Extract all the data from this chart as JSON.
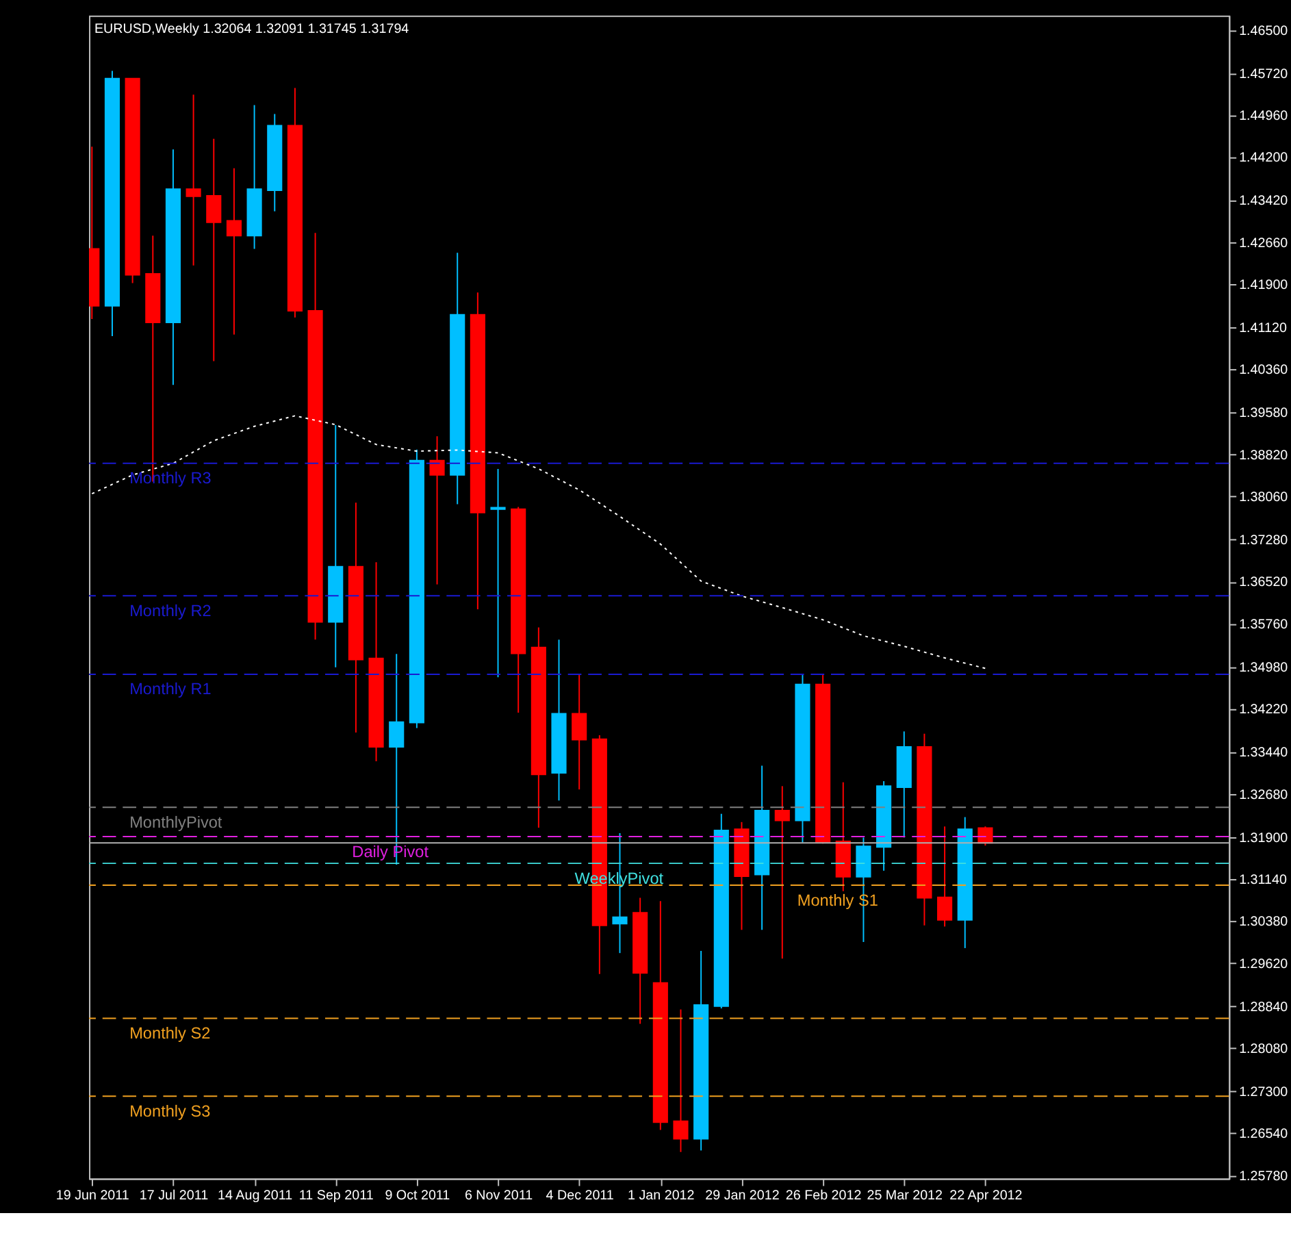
{
  "chart_data": {
    "type": "candlestick",
    "title": "EURUSD,Weekly  1.32064 1.32091 1.31745 1.31794",
    "x": [
      "2011-06-19",
      "2011-06-26",
      "2011-07-03",
      "2011-07-10",
      "2011-07-17",
      "2011-07-24",
      "2011-07-31",
      "2011-08-07",
      "2011-08-14",
      "2011-08-21",
      "2011-08-28",
      "2011-09-04",
      "2011-09-11",
      "2011-09-18",
      "2011-09-25",
      "2011-10-02",
      "2011-10-09",
      "2011-10-16",
      "2011-10-23",
      "2011-10-30",
      "2011-11-06",
      "2011-11-13",
      "2011-11-20",
      "2011-11-27",
      "2011-12-04",
      "2011-12-11",
      "2011-12-18",
      "2011-12-25",
      "2012-01-01",
      "2012-01-08",
      "2012-01-15",
      "2012-01-22",
      "2012-01-29",
      "2012-02-05",
      "2012-02-12",
      "2012-02-19",
      "2012-02-26",
      "2012-03-04",
      "2012-03-11",
      "2012-03-18",
      "2012-03-25",
      "2012-04-01",
      "2012-04-08",
      "2012-04-15",
      "2012-04-22"
    ],
    "ohlc": [
      [
        1.4254,
        1.4439,
        1.4127,
        1.4151
      ],
      [
        1.4151,
        1.4576,
        1.4096,
        1.4562
      ],
      [
        1.4562,
        1.4562,
        1.4192,
        1.4207
      ],
      [
        1.4209,
        1.4278,
        1.3833,
        1.4121
      ],
      [
        1.4121,
        1.4434,
        1.4008,
        1.4362
      ],
      [
        1.4362,
        1.4533,
        1.4224,
        1.4349
      ],
      [
        1.435,
        1.4453,
        1.4051,
        1.4302
      ],
      [
        1.4305,
        1.44,
        1.4099,
        1.4278
      ],
      [
        1.4278,
        1.4514,
        1.4254,
        1.4362
      ],
      [
        1.436,
        1.4498,
        1.4322,
        1.4477
      ],
      [
        1.4477,
        1.4545,
        1.413,
        1.4142
      ],
      [
        1.4142,
        1.4283,
        1.3547,
        1.3579
      ],
      [
        1.3579,
        1.3935,
        1.3497,
        1.3679
      ],
      [
        1.3679,
        1.3795,
        1.3379,
        1.3511
      ],
      [
        1.3513,
        1.3687,
        1.3327,
        1.3353
      ],
      [
        1.3353,
        1.3521,
        1.314,
        1.3398
      ],
      [
        1.3397,
        1.3891,
        1.3387,
        1.3871
      ],
      [
        1.3871,
        1.3915,
        1.3647,
        1.3845
      ],
      [
        1.3845,
        1.4247,
        1.3792,
        1.4135
      ],
      [
        1.4135,
        1.4175,
        1.3602,
        1.3777
      ],
      [
        1.3783,
        1.3856,
        1.3479,
        1.3786
      ],
      [
        1.3783,
        1.3787,
        1.3415,
        1.3522
      ],
      [
        1.3533,
        1.3569,
        1.3207,
        1.3303
      ],
      [
        1.3306,
        1.3547,
        1.3256,
        1.3413
      ],
      [
        1.3413,
        1.3483,
        1.3276,
        1.3366
      ],
      [
        1.3367,
        1.3374,
        1.2942,
        1.303
      ],
      [
        1.3033,
        1.3197,
        1.298,
        1.3045
      ],
      [
        1.3053,
        1.308,
        1.2852,
        1.2944
      ],
      [
        1.2926,
        1.3074,
        1.266,
        1.2674
      ],
      [
        1.2676,
        1.2878,
        1.262,
        1.2644
      ],
      [
        1.2644,
        1.2984,
        1.2623,
        1.2886
      ],
      [
        1.2884,
        1.3232,
        1.288,
        1.3202
      ],
      [
        1.3204,
        1.3217,
        1.3022,
        1.3119
      ],
      [
        1.3122,
        1.3319,
        1.3022,
        1.3238
      ],
      [
        1.3238,
        1.3282,
        1.297,
        1.322
      ],
      [
        1.322,
        1.3483,
        1.318,
        1.3466
      ],
      [
        1.3466,
        1.3483,
        1.3178,
        1.3181
      ],
      [
        1.3182,
        1.3289,
        1.3092,
        1.3118
      ],
      [
        1.3118,
        1.3189,
        1.3,
        1.3173
      ],
      [
        1.3172,
        1.3291,
        1.3129,
        1.3282
      ],
      [
        1.328,
        1.3381,
        1.3189,
        1.3353
      ],
      [
        1.3353,
        1.3377,
        1.303,
        1.308
      ],
      [
        1.3081,
        1.3209,
        1.3028,
        1.304
      ],
      [
        1.304,
        1.3226,
        1.2989,
        1.3204
      ],
      [
        1.32064,
        1.32091,
        1.31745,
        1.31794
      ]
    ],
    "colors": [
      "#ff0000",
      "#00bfff",
      "#ff0000",
      "#ff0000",
      "#00bfff",
      "#ff0000",
      "#ff0000",
      "#ff0000",
      "#00bfff",
      "#00bfff",
      "#ff0000",
      "#ff0000",
      "#00bfff",
      "#ff0000",
      "#ff0000",
      "#00bfff",
      "#00bfff",
      "#ff0000",
      "#00bfff",
      "#ff0000",
      "#00bfff",
      "#ff0000",
      "#ff0000",
      "#00bfff",
      "#ff0000",
      "#ff0000",
      "#00bfff",
      "#ff0000",
      "#ff0000",
      "#ff0000",
      "#00bfff",
      "#00bfff",
      "#ff0000",
      "#00bfff",
      "#ff0000",
      "#00bfff",
      "#ff0000",
      "#ff0000",
      "#00bfff",
      "#00bfff",
      "#00bfff",
      "#ff0000",
      "#ff0000",
      "#00bfff",
      "#ff0000"
    ],
    "series": [
      {
        "type": "line",
        "color": "#ffffff",
        "line_style": "dotted",
        "x": [
          "2011-06-19",
          "2011-07-03",
          "2011-07-17",
          "2011-07-31",
          "2011-08-14",
          "2011-08-28",
          "2011-09-11",
          "2011-09-25",
          "2011-10-09",
          "2011-10-23",
          "2011-11-06",
          "2011-11-20",
          "2011-12-04",
          "2011-12-18",
          "2012-01-01",
          "2012-01-15",
          "2012-01-29",
          "2012-02-12",
          "2012-02-26",
          "2012-03-11",
          "2012-03-25",
          "2012-04-08",
          "2012-04-22"
        ],
        "values": [
          1.3811,
          1.3845,
          1.3866,
          1.3907,
          1.3933,
          1.3952,
          1.3936,
          1.39,
          1.3888,
          1.389,
          1.3885,
          1.3856,
          1.3818,
          1.377,
          1.372,
          1.3653,
          1.3626,
          1.3605,
          1.3583,
          1.3554,
          1.3535,
          1.3514,
          1.3495
        ]
      }
    ],
    "ref_lines": [
      {
        "axis": "y",
        "value": 1.38661,
        "label": "Monthly R3",
        "color": "#1a1ad0",
        "line_style": "dashed"
      },
      {
        "axis": "y",
        "value": 1.36263,
        "label": "Monthly R2",
        "color": "#1a1ad0",
        "line_style": "dashed"
      },
      {
        "axis": "y",
        "value": 1.34844,
        "label": "Monthly R1",
        "color": "#1a1ad0",
        "line_style": "dashed"
      },
      {
        "axis": "y",
        "value": 1.32436,
        "label": "MonthlyPivot",
        "color": "#808080",
        "line_style": "dashed"
      },
      {
        "axis": "y",
        "value": 1.31907,
        "label": "Daily Pivot",
        "color": "#e020e0",
        "line_style": "dashed"
      },
      {
        "axis": "y",
        "value": 1.31794,
        "label": null,
        "color": "#b0b0b0",
        "line_style": "solid"
      },
      {
        "axis": "y",
        "value": 1.31423,
        "label": "WeeklyPivot",
        "color": "#40e0e0",
        "line_style": "dashed"
      },
      {
        "axis": "y",
        "value": 1.31027,
        "label": "Monthly S1",
        "color": "#f0a020",
        "line_style": "dashed"
      },
      {
        "axis": "y",
        "value": 1.28619,
        "label": "Monthly S2",
        "color": "#f0a020",
        "line_style": "dashed"
      },
      {
        "axis": "y",
        "value": 1.2721,
        "label": "Monthly S3",
        "color": "#f0a020",
        "line_style": "dashed"
      }
    ],
    "xlim": [
      "2011-06-18",
      "2012-07-15"
    ],
    "xticks": [
      {
        "value": "2011-06-19",
        "label": "19 Jun 2011"
      },
      {
        "value": "2011-07-17",
        "label": "17 Jul 2011"
      },
      {
        "value": "2011-08-14",
        "label": "14 Aug 2011"
      },
      {
        "value": "2011-09-11",
        "label": "11 Sep 2011"
      },
      {
        "value": "2011-10-09",
        "label": "9 Oct 2011"
      },
      {
        "value": "2011-11-06",
        "label": "6 Nov 2011"
      },
      {
        "value": "2011-12-04",
        "label": "4 Dec 2011"
      },
      {
        "value": "2012-01-01",
        "label": "1 Jan 2012"
      },
      {
        "value": "2012-01-29",
        "label": "29 Jan 2012"
      },
      {
        "value": "2012-02-26",
        "label": "26 Feb 2012"
      },
      {
        "value": "2012-03-25",
        "label": "25 Mar 2012"
      },
      {
        "value": "2012-04-22",
        "label": "22 Apr 2012"
      }
    ],
    "ylim": [
      1.2572,
      1.4676
    ],
    "yticks": [
      {
        "value": 1.465,
        "label": "1.46500"
      },
      {
        "value": 1.4572,
        "label": "1.45720"
      },
      {
        "value": 1.4496,
        "label": "1.44960"
      },
      {
        "value": 1.442,
        "label": "1.44200"
      },
      {
        "value": 1.4342,
        "label": "1.43420"
      },
      {
        "value": 1.4266,
        "label": "1.42660"
      },
      {
        "value": 1.419,
        "label": "1.41900"
      },
      {
        "value": 1.4112,
        "label": "1.41120"
      },
      {
        "value": 1.4036,
        "label": "1.40360"
      },
      {
        "value": 1.3958,
        "label": "1.39580"
      },
      {
        "value": 1.3882,
        "label": "1.38820"
      },
      {
        "value": 1.3806,
        "label": "1.38060"
      },
      {
        "value": 1.3728,
        "label": "1.37280"
      },
      {
        "value": 1.3652,
        "label": "1.36520"
      },
      {
        "value": 1.3576,
        "label": "1.35760"
      },
      {
        "value": 1.3498,
        "label": "1.34980"
      },
      {
        "value": 1.3422,
        "label": "1.34220"
      },
      {
        "value": 1.3344,
        "label": "1.33440"
      },
      {
        "value": 1.3268,
        "label": "1.32680"
      },
      {
        "value": 1.319,
        "label": "1.31900"
      },
      {
        "value": 1.3114,
        "label": "1.31140"
      },
      {
        "value": 1.3038,
        "label": "1.30380"
      },
      {
        "value": 1.2962,
        "label": "1.29620"
      },
      {
        "value": 1.2884,
        "label": "1.28840"
      },
      {
        "value": 1.2808,
        "label": "1.28080"
      },
      {
        "value": 1.273,
        "label": "1.27300"
      },
      {
        "value": 1.2654,
        "label": "1.26540"
      },
      {
        "value": 1.2578,
        "label": "1.25780"
      }
    ],
    "grid": false,
    "legend": false
  }
}
